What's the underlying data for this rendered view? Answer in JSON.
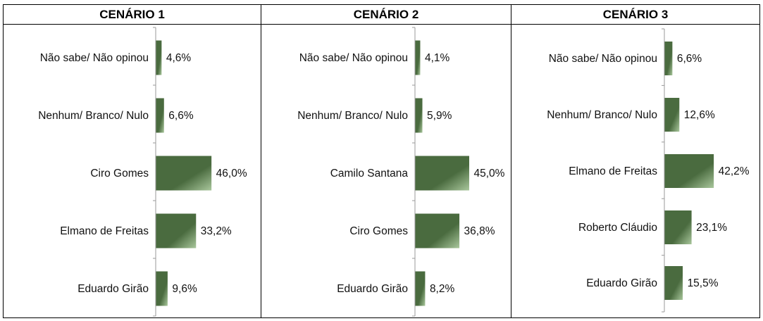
{
  "chart_data": [
    {
      "type": "bar",
      "orientation": "horizontal",
      "title": "CENÁRIO 1",
      "categories": [
        "Não sabe/ Não opinou",
        "Nenhum/ Branco/ Nulo",
        "Ciro Gomes",
        "Elmano de Freitas",
        "Eduardo Girão"
      ],
      "values": [
        4.6,
        6.6,
        46.0,
        33.2,
        9.6
      ],
      "value_labels": [
        "4,6%",
        "6,6%",
        "46,0%",
        "33,2%",
        "9,6%"
      ],
      "xlim": [
        0,
        50
      ],
      "grid": false,
      "legend": "none"
    },
    {
      "type": "bar",
      "orientation": "horizontal",
      "title": "CENÁRIO 2",
      "categories": [
        "Não sabe/ Não opinou",
        "Nenhum/ Branco/ Nulo",
        "Camilo Santana",
        "Ciro Gomes",
        "Eduardo Girão"
      ],
      "values": [
        4.1,
        5.9,
        45.0,
        36.8,
        8.2
      ],
      "value_labels": [
        "4,1%",
        "5,9%",
        "45,0%",
        "36,8%",
        "8,2%"
      ],
      "xlim": [
        0,
        50
      ],
      "grid": false,
      "legend": "none"
    },
    {
      "type": "bar",
      "orientation": "horizontal",
      "title": "CENÁRIO 3",
      "categories": [
        "Não sabe/ Não opinou",
        "Nenhum/ Branco/ Nulo",
        "Elmano de Freitas",
        "Roberto Cláudio",
        "Eduardo Girão"
      ],
      "values": [
        6.6,
        12.6,
        42.2,
        23.1,
        15.5
      ],
      "value_labels": [
        "6,6%",
        "12,6%",
        "42,2%",
        "23,1%",
        "15,5%"
      ],
      "xlim": [
        0,
        50
      ],
      "grid": false,
      "legend": "none"
    }
  ],
  "colors": {
    "bar_dark": "#4a6b3f",
    "bar_light": "#a9c79c",
    "axis": "#9a9a9a"
  }
}
